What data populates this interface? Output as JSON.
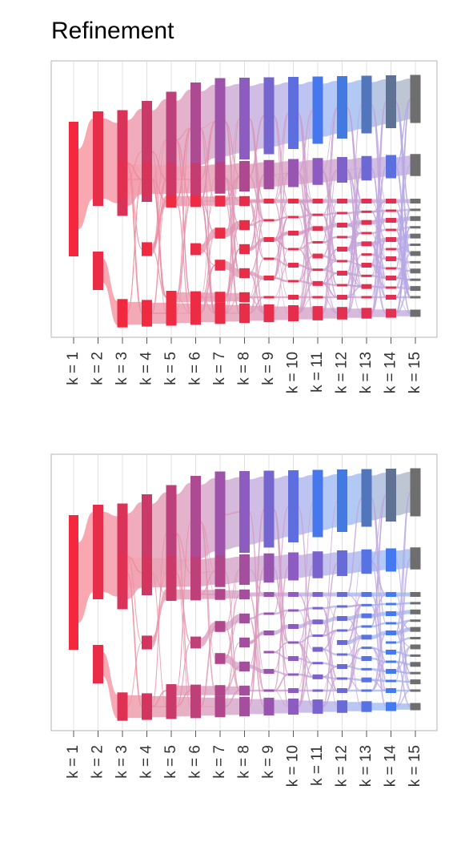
{
  "title": "Refinement",
  "chart_data": [
    {
      "type": "flow",
      "title": "Refinement",
      "categories": [
        "k = 1",
        "k = 2",
        "k = 3",
        "k = 4",
        "k = 5",
        "k = 6",
        "k = 7",
        "k = 8",
        "k = 9",
        "k = 10",
        "k = 11",
        "k = 12",
        "k = 13",
        "k = 14",
        "k = 15"
      ],
      "xlabel": "",
      "ylabel": "",
      "grid": true,
      "color_scale": [
        "#f4283c",
        "#c43c70",
        "#8c5cc0",
        "#3c7cf4",
        "#6e6e6e"
      ]
    },
    {
      "type": "flow",
      "title": "",
      "categories": [
        "k = 1",
        "k = 2",
        "k = 3",
        "k = 4",
        "k = 5",
        "k = 6",
        "k = 7",
        "k = 8",
        "k = 9",
        "k = 10",
        "k = 11",
        "k = 12",
        "k = 13",
        "k = 14",
        "k = 15"
      ],
      "xlabel": "",
      "ylabel": "",
      "grid": true,
      "color_scale": [
        "#f4283c",
        "#c43c70",
        "#8c5cc0",
        "#3c7cf4",
        "#6e6e6e"
      ]
    }
  ]
}
